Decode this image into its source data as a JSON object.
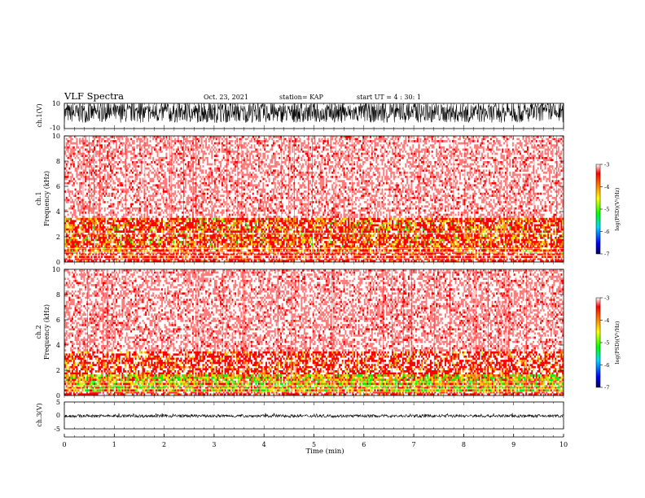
{
  "header": {
    "title": "VLF Spectra",
    "date": "Oct. 23, 2021",
    "station": "station= KAP",
    "start": "start  UT =   4 : 30: 1"
  },
  "chart_data": [
    {
      "type": "line",
      "panel": "ch1-waveform",
      "ylabel": "ch.1(V)",
      "ylim": [
        -10,
        10
      ],
      "yticks": [
        "10",
        "-10"
      ],
      "xlim": [
        0,
        10
      ],
      "note": "dense noisy waveform filling roughly -5 to +10 V"
    },
    {
      "type": "heatmap",
      "panel": "ch1-spectrogram",
      "ylabel_channel": "ch.1",
      "ylabel": "Frequency (kHz)",
      "ylim": [
        0,
        10
      ],
      "yticks": [
        "0",
        "2",
        "4",
        "6",
        "8",
        "10"
      ],
      "xlim": [
        0,
        10
      ],
      "colorbar": {
        "label": "log(PSD)(V²/Hz)",
        "range": [
          -7,
          -3
        ],
        "ticks": [
          "-3",
          "-4",
          "-5",
          "-6",
          "-7"
        ]
      }
    },
    {
      "type": "heatmap",
      "panel": "ch2-spectrogram",
      "ylabel_channel": "ch.2",
      "ylabel": "Frequency (kHz)",
      "ylim": [
        0,
        10
      ],
      "yticks": [
        "0",
        "2",
        "4",
        "6",
        "8",
        "10"
      ],
      "xlim": [
        0,
        10
      ],
      "colorbar": {
        "label": "log(PSD)(V²/Hz)",
        "range": [
          -7,
          -3
        ],
        "ticks": [
          "-3",
          "-4",
          "-5",
          "-6",
          "-7"
        ]
      }
    },
    {
      "type": "line",
      "panel": "ch3-waveform",
      "ylabel": "ch.3(V)",
      "ylim": [
        -5,
        5
      ],
      "yticks": [
        "5",
        "0",
        "-5"
      ],
      "xlim": [
        0,
        10
      ],
      "note": "thick band near -0.2 V"
    }
  ],
  "xaxis": {
    "label": "Time (min)",
    "ticks": [
      "0",
      "1",
      "2",
      "3",
      "4",
      "5",
      "6",
      "7",
      "8",
      "9",
      "10"
    ]
  },
  "colors": {
    "spectrogram_base": "#ff5050",
    "intense_red": "#ff0000",
    "orange": "#ff8c00",
    "yellow": "#e6e600",
    "green": "#10ee10"
  }
}
